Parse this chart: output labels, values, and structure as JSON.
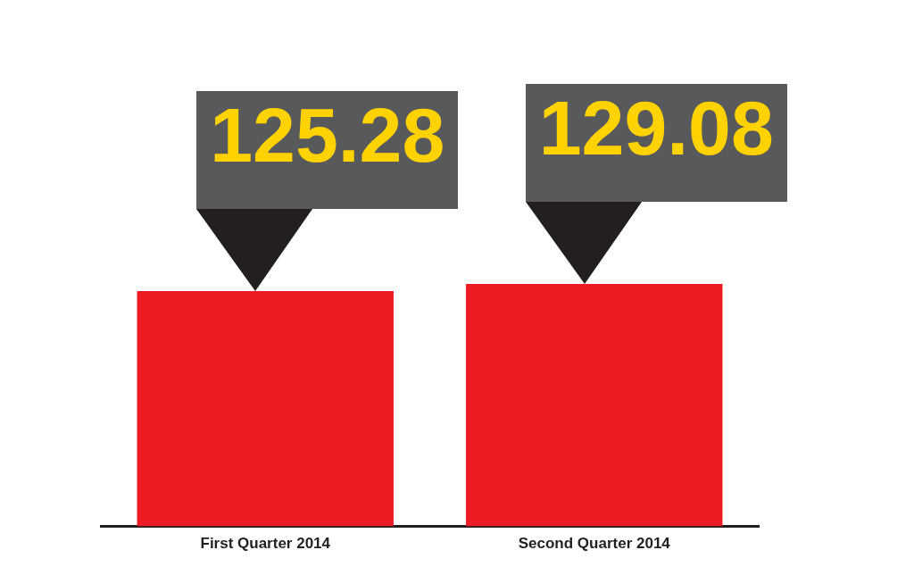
{
  "chart_data": {
    "type": "bar",
    "categories": [
      "First Quarter 2014",
      "Second Quarter 2014"
    ],
    "values": [
      125.28,
      129.08
    ],
    "color": "#ed1c24",
    "data_labels": true,
    "grid": false,
    "legend": false,
    "tick_labels": "x"
  }
}
